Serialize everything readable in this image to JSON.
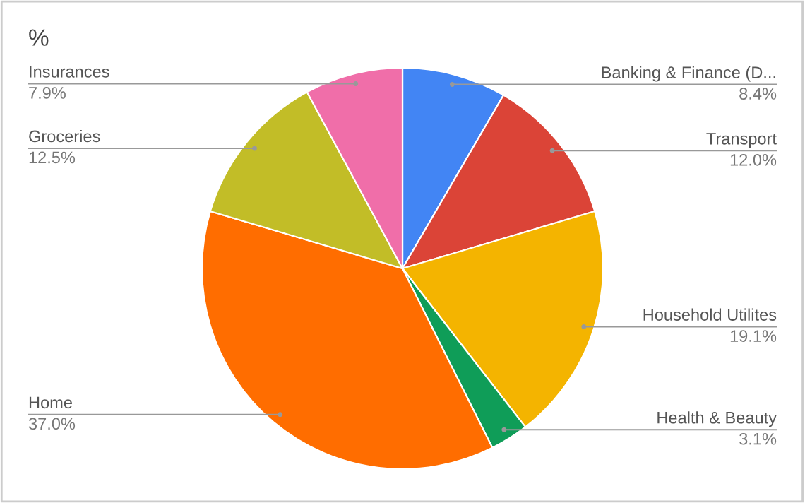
{
  "chart_data": {
    "type": "pie",
    "title": "%",
    "categories": [
      "Banking & Finance (D...",
      "Transport",
      "Household Utilites",
      "Health & Beauty",
      "Home",
      "Groceries",
      "Insurances"
    ],
    "values": [
      8.4,
      12.0,
      19.1,
      3.1,
      37.0,
      12.5,
      7.9
    ],
    "value_labels": [
      "8.4%",
      "12.0%",
      "19.1%",
      "3.1%",
      "37.0%",
      "12.5%",
      "7.9%"
    ],
    "colors": [
      "#4285f4",
      "#db4437",
      "#f4b400",
      "#0f9d58",
      "#ff6d00",
      "#c2bd27",
      "#f06ea9"
    ],
    "legend": false
  }
}
